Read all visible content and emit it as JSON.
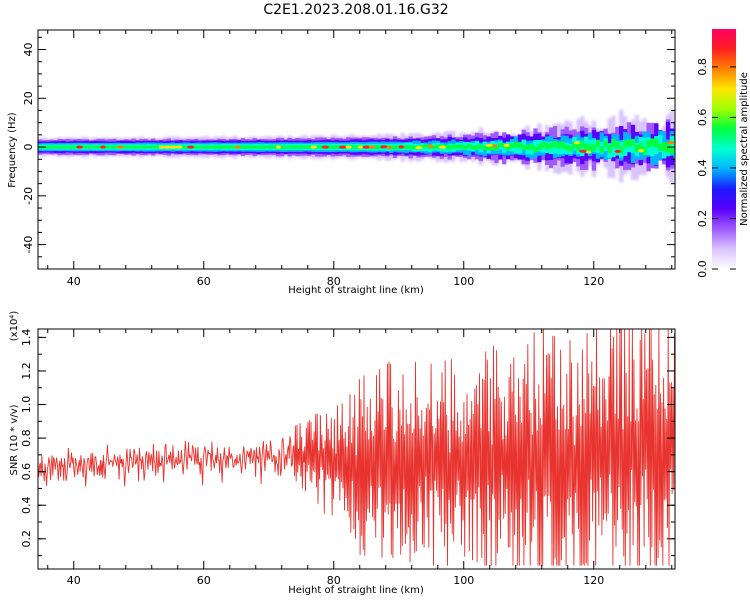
{
  "title": "C2E1.2023.208.01.16.G32",
  "colors": {
    "snr_line": "#e8332e",
    "spectrogram_palette": [
      "#ffffff",
      "#d9c3ff",
      "#a05bff",
      "#5a00ff",
      "#1a1aff",
      "#00b4ff",
      "#00ffd0",
      "#00ff40",
      "#a0ff00",
      "#ffe600",
      "#ff8000",
      "#ff2020",
      "#ff0060"
    ]
  },
  "chart_data": [
    {
      "type": "heatmap",
      "xlabel": "Height of straight line (km)",
      "ylabel": "Frequency (Hz)",
      "xlim": [
        34.5,
        132.5
      ],
      "ylim": [
        -50,
        48
      ],
      "xticks": [
        "40",
        "60",
        "80",
        "100",
        "120"
      ],
      "yticks": [
        "40",
        "20",
        "0",
        "-20",
        "-40"
      ],
      "ridge_frequency_hz": 0,
      "band_halfwidth_hz": [
        {
          "x": 35,
          "halfwidth": 3
        },
        {
          "x": 75,
          "halfwidth": 3.5
        },
        {
          "x": 90,
          "halfwidth": 4
        },
        {
          "x": 100,
          "halfwidth": 4.5
        },
        {
          "x": 110,
          "halfwidth": 6
        },
        {
          "x": 120,
          "halfwidth": 7.5
        },
        {
          "x": 132,
          "halfwidth": 9
        }
      ],
      "colorbar": {
        "label": "Normalized spectral amplitude",
        "range": [
          0,
          0.95
        ],
        "ticks": [
          "0.0",
          "0.2",
          "0.4",
          "0.6",
          "0.8"
        ]
      }
    },
    {
      "type": "line",
      "xlabel": "Height of straight line (km)",
      "ylabel": "SNR (10 * v/v)",
      "multiplier_label": "(x10⁴)",
      "xlim": [
        34.5,
        132.5
      ],
      "ylim": [
        0.02,
        1.45
      ],
      "xticks": [
        "40",
        "60",
        "80",
        "100",
        "120"
      ],
      "yticks": [
        "0.2",
        "0.4",
        "0.6",
        "0.8",
        "1.0",
        "1.2",
        "1.4"
      ],
      "envelope": [
        {
          "x": 35,
          "mean": 0.62,
          "spread": 0.08
        },
        {
          "x": 55,
          "mean": 0.67,
          "spread": 0.09
        },
        {
          "x": 70,
          "mean": 0.68,
          "spread": 0.1
        },
        {
          "x": 75,
          "mean": 0.68,
          "spread": 0.18
        },
        {
          "x": 80,
          "mean": 0.65,
          "spread": 0.3
        },
        {
          "x": 85,
          "mean": 0.65,
          "spread": 0.5
        },
        {
          "x": 100,
          "mean": 0.63,
          "spread": 0.55
        },
        {
          "x": 110,
          "mean": 0.65,
          "spread": 0.65
        },
        {
          "x": 120,
          "mean": 0.7,
          "spread": 0.75
        },
        {
          "x": 132,
          "mean": 0.7,
          "spread": 0.7
        }
      ],
      "series": [
        {
          "values": [
            0.62,
            0.58,
            0.66,
            0.64,
            0.55,
            0.7,
            0.6,
            0.65,
            0.58,
            0.66,
            0.62,
            0.5,
            0.6,
            0.68,
            0.72,
            0.64,
            0.58,
            0.66,
            0.7,
            0.62,
            0.68,
            0.64,
            0.6,
            0.7,
            0.66
          ]
        }
      ]
    }
  ]
}
